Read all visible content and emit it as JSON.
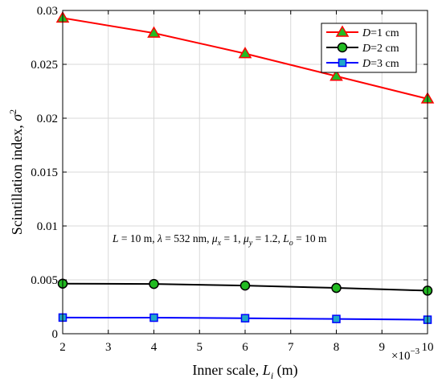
{
  "chart_data": {
    "type": "line",
    "xlabel_text": "Inner scale, ",
    "xlabel_var": "L",
    "xlabel_sub": "i",
    "xlabel_unit": " (m)",
    "ylabel_text": "Scintillation index, ",
    "ylabel_var": "σ",
    "ylabel_sup": "2",
    "x_multiplier_base": "×10",
    "x_multiplier_exp": "−3",
    "x": [
      2,
      4,
      6,
      8,
      10
    ],
    "xlim": [
      2,
      10
    ],
    "ylim": [
      0,
      0.03
    ],
    "xticks": [
      2,
      3,
      4,
      5,
      6,
      7,
      8,
      9,
      10
    ],
    "xtick_labels": [
      "2",
      "3",
      "4",
      "5",
      "6",
      "7",
      "8",
      "9",
      "10"
    ],
    "yticks": [
      0,
      0.005,
      0.01,
      0.015,
      0.02,
      0.025,
      0.03
    ],
    "ytick_labels": [
      "0",
      "0.005",
      "0.01",
      "0.015",
      "0.02",
      "0.025",
      "0.03"
    ],
    "grid": true,
    "legend_position": "top-right",
    "annotation": "L = 10 m, λ = 532 nm, μx = 1, μy = 1.2, Lo = 10 m",
    "series": [
      {
        "legend_var": "D",
        "legend_rest": "=1 cm",
        "marker": "triangle",
        "line_color": "#ff0000",
        "marker_fill": "#22bb22",
        "values": [
          0.0293,
          0.0279,
          0.026,
          0.0239,
          0.0218
        ]
      },
      {
        "legend_var": "D",
        "legend_rest": "=2 cm",
        "marker": "circle",
        "line_color": "#000000",
        "marker_fill": "#22bb22",
        "values": [
          0.00465,
          0.00462,
          0.00447,
          0.00425,
          0.004
        ]
      },
      {
        "legend_var": "D",
        "legend_rest": "=3 cm",
        "marker": "square",
        "line_color": "#0000ff",
        "marker_fill": "#20a8c8",
        "values": [
          0.0015,
          0.00149,
          0.00144,
          0.00137,
          0.0013
        ]
      }
    ]
  }
}
